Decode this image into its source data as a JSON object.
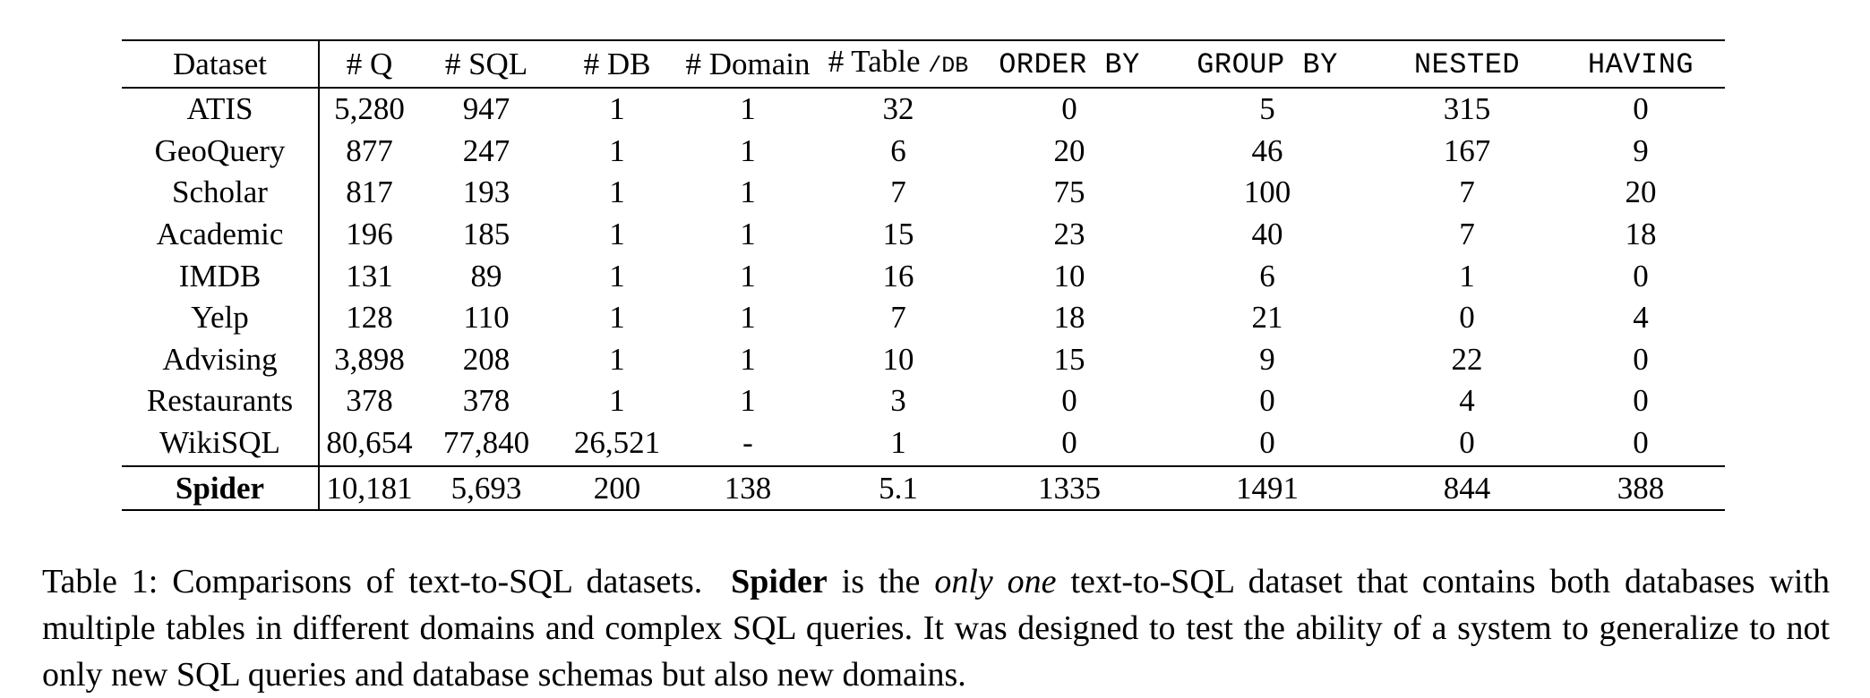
{
  "table": {
    "headers": [
      {
        "text": "Dataset",
        "style": "serif"
      },
      {
        "text": "# Q",
        "style": "serif"
      },
      {
        "text": "# SQL",
        "style": "serif"
      },
      {
        "text": "# DB",
        "style": "serif"
      },
      {
        "text": "# Domain",
        "style": "serif"
      },
      {
        "text": "# Table",
        "suffix": "/DB",
        "style": "serif"
      },
      {
        "text": "ORDER BY",
        "style": "mono"
      },
      {
        "text": "GROUP BY",
        "style": "mono"
      },
      {
        "text": "NESTED",
        "style": "mono"
      },
      {
        "text": "HAVING",
        "style": "mono"
      }
    ],
    "rows": [
      [
        "ATIS",
        "5,280",
        "947",
        "1",
        "1",
        "32",
        "0",
        "5",
        "315",
        "0"
      ],
      [
        "GeoQuery",
        "877",
        "247",
        "1",
        "1",
        "6",
        "20",
        "46",
        "167",
        "9"
      ],
      [
        "Scholar",
        "817",
        "193",
        "1",
        "1",
        "7",
        "75",
        "100",
        "7",
        "20"
      ],
      [
        "Academic",
        "196",
        "185",
        "1",
        "1",
        "15",
        "23",
        "40",
        "7",
        "18"
      ],
      [
        "IMDB",
        "131",
        "89",
        "1",
        "1",
        "16",
        "10",
        "6",
        "1",
        "0"
      ],
      [
        "Yelp",
        "128",
        "110",
        "1",
        "1",
        "7",
        "18",
        "21",
        "0",
        "4"
      ],
      [
        "Advising",
        "3,898",
        "208",
        "1",
        "1",
        "10",
        "15",
        "9",
        "22",
        "0"
      ],
      [
        "Restaurants",
        "378",
        "378",
        "1",
        "1",
        "3",
        "0",
        "0",
        "4",
        "0"
      ],
      [
        "WikiSQL",
        "80,654",
        "77,840",
        "26,521",
        "-",
        "1",
        "0",
        "0",
        "0",
        "0"
      ]
    ],
    "highlight_row": [
      "Spider",
      "10,181",
      "5,693",
      "200",
      "138",
      "5.1",
      "1335",
      "1491",
      "844",
      "388"
    ]
  },
  "caption": {
    "label": "Table 1:",
    "part1": "Comparisons of text-to-SQL datasets.",
    "bold": "Spider",
    "part2": "is the",
    "italic": "only one",
    "part3": "text-to-SQL dataset that contains both databases with multiple tables in different domains and complex SQL queries. It was designed to test the ability of a system to generalize to not only new SQL queries and database schemas but also new domains."
  }
}
